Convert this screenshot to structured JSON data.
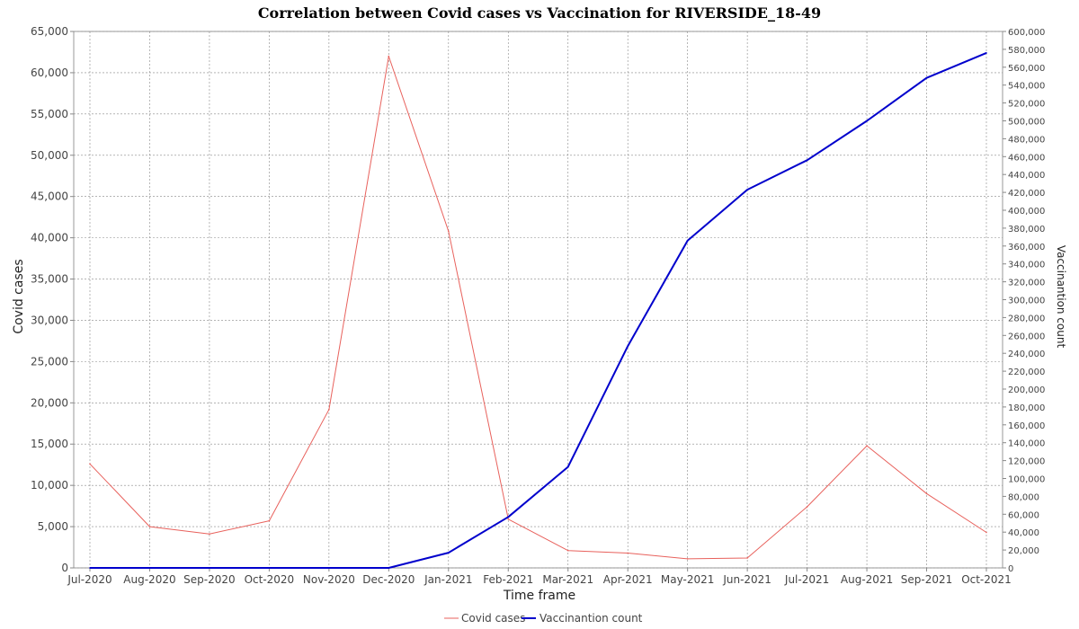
{
  "chart_data": {
    "type": "line",
    "title": "Correlation between Covid cases vs Vaccination for RIVERSIDE_18-49",
    "xlabel": "Time frame",
    "ylabel": "Covid cases",
    "ylabel_right": "Vaccinantion count",
    "categories": [
      "Jul-2020",
      "Aug-2020",
      "Sep-2020",
      "Oct-2020",
      "Nov-2020",
      "Dec-2020",
      "Jan-2021",
      "Feb-2021",
      "Mar-2021",
      "Apr-2021",
      "May-2021",
      "Jun-2021",
      "Jul-2021",
      "Aug-2021",
      "Sep-2021",
      "Oct-2021"
    ],
    "ylim": [
      0,
      65000
    ],
    "ylim_right": [
      0,
      600000
    ],
    "y_ticks": [
      0,
      5000,
      10000,
      15000,
      20000,
      25000,
      30000,
      35000,
      40000,
      45000,
      50000,
      55000,
      60000,
      65000
    ],
    "y_ticks_right": [
      0,
      20000,
      40000,
      60000,
      80000,
      100000,
      120000,
      140000,
      160000,
      180000,
      200000,
      220000,
      240000,
      260000,
      280000,
      300000,
      320000,
      340000,
      360000,
      380000,
      400000,
      420000,
      440000,
      460000,
      480000,
      500000,
      520000,
      540000,
      560000,
      580000,
      600000
    ],
    "grid": true,
    "legend_position": "bottom-center",
    "series": [
      {
        "name": "Covid cases",
        "axis": "left",
        "color": "#e8615c",
        "values": [
          12600,
          5000,
          4100,
          5700,
          19200,
          62000,
          40800,
          5900,
          2100,
          1800,
          1100,
          1200,
          7400,
          14800,
          9000,
          4300
        ]
      },
      {
        "name": "Vaccinantion count",
        "axis": "right",
        "color": "#0000cc",
        "values": [
          0,
          0,
          0,
          0,
          0,
          0,
          17000,
          57000,
          113000,
          248000,
          366000,
          423000,
          456000,
          500000,
          548000,
          576000
        ]
      }
    ]
  }
}
